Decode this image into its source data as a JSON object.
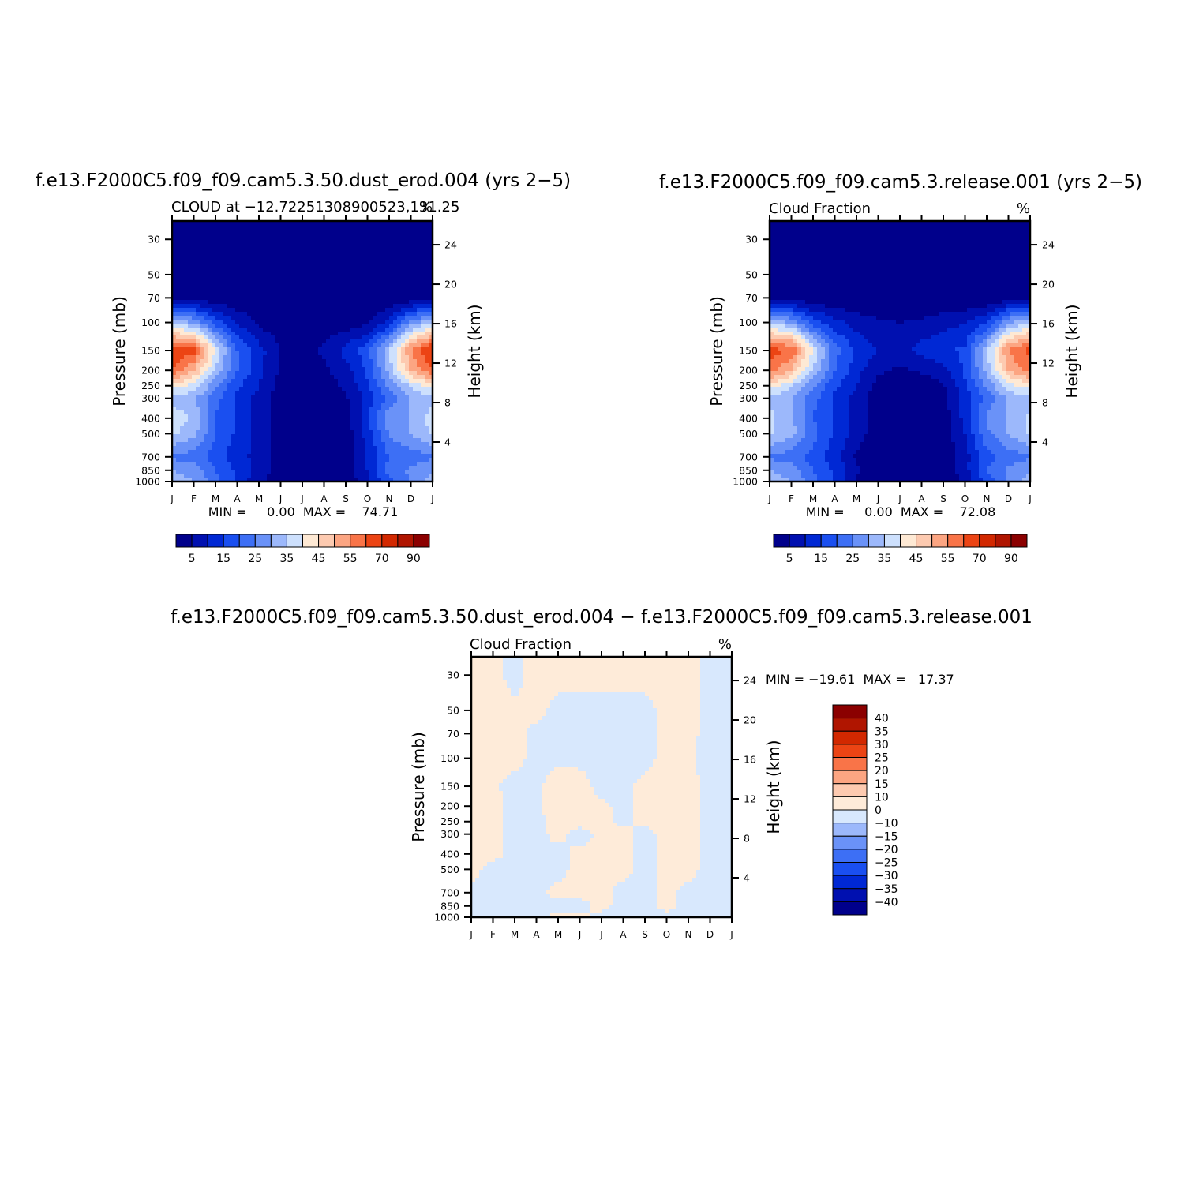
{
  "figure": {
    "panel_a": {
      "case_title": "f.e13.F2000C5.f09_f09.cam5.3.50.dust_erod.004 (yrs 2−5)",
      "left_string": "CLOUD at −12.72251308900523,131.25",
      "right_string": "%",
      "stats": "MIN =     0.00  MAX =    74.71"
    },
    "panel_b": {
      "case_title": "f.e13.F2000C5.f09_f09.cam5.3.release.001 (yrs 2−5)",
      "left_string": "Cloud Fraction",
      "right_string": "%",
      "stats": "MIN =     0.00  MAX =    72.08"
    },
    "panel_c": {
      "case_title": "f.e13.F2000C5.f09_f09.cam5.3.50.dust_erod.004 − f.e13.F2000C5.f09_f09.cam5.3.release.001",
      "left_string": "Cloud Fraction",
      "right_string": "%",
      "stats": "MIN = −19.61  MAX =   17.37"
    }
  },
  "chart_data": [
    {
      "type": "heatmap",
      "subtype": "filled-contour",
      "title": "f.e13.F2000C5.f09_f09.cam5.3.50.dust_erod.004 (yrs 2−5)",
      "subtitle": "CLOUD at −12.72251308900523,131.25",
      "units": "%",
      "xlabel": "",
      "ylabel": "Pressure (mb)",
      "ylabel_right": "Height (km)",
      "x_ticks": [
        "J",
        "F",
        "M",
        "A",
        "M",
        "J",
        "J",
        "A",
        "S",
        "O",
        "N",
        "D",
        "J"
      ],
      "y_ticks": [
        30,
        50,
        70,
        100,
        150,
        200,
        250,
        300,
        400,
        500,
        700,
        850,
        1000
      ],
      "y_scale": "log",
      "ylim": [
        1000,
        23
      ],
      "y_ticks_right": [
        4,
        8,
        12,
        16,
        20,
        24
      ],
      "levels": [
        5,
        10,
        15,
        20,
        25,
        30,
        35,
        40,
        45,
        50,
        55,
        60,
        70,
        80,
        90
      ],
      "colorbar_labels": [
        "5",
        "15",
        "25",
        "35",
        "45",
        "55",
        "70",
        "90"
      ],
      "colors": [
        "#00008b",
        "#0010b0",
        "#0028d4",
        "#1a4ff0",
        "#3d6ff5",
        "#6a92f8",
        "#9cb8fb",
        "#cde0fd",
        "#fee9d4",
        "#fdcab0",
        "#fca582",
        "#f97448",
        "#ec4414",
        "#d22800",
        "#b01500",
        "#8b0000"
      ],
      "field": {
        "months": [
          1,
          2,
          3,
          4,
          5,
          6,
          7,
          8,
          9,
          10,
          11,
          12,
          13
        ],
        "pressure_mb": [
          30,
          50,
          70,
          100,
          150,
          200,
          250,
          300,
          400,
          500,
          700,
          850,
          1000
        ],
        "values": [
          [
            0,
            0,
            0,
            0,
            0,
            0,
            0,
            0,
            0,
            0,
            0,
            0,
            0
          ],
          [
            0,
            0,
            0,
            0,
            0,
            0,
            0,
            0,
            0,
            0,
            0,
            0,
            0
          ],
          [
            2,
            2,
            1,
            0,
            0,
            0,
            0,
            0,
            0,
            0,
            0,
            1,
            2
          ],
          [
            35,
            30,
            18,
            10,
            4,
            1,
            0,
            1,
            2,
            4,
            12,
            28,
            35
          ],
          [
            65,
            62,
            40,
            20,
            12,
            5,
            2,
            6,
            12,
            18,
            35,
            55,
            68
          ],
          [
            60,
            50,
            34,
            20,
            12,
            4,
            1,
            4,
            8,
            16,
            32,
            50,
            60
          ],
          [
            42,
            38,
            26,
            16,
            10,
            3,
            1,
            2,
            6,
            14,
            26,
            36,
            42
          ],
          [
            34,
            30,
            22,
            14,
            8,
            2,
            1,
            1,
            4,
            12,
            22,
            30,
            34
          ],
          [
            38,
            34,
            20,
            14,
            8,
            2,
            0,
            1,
            3,
            14,
            28,
            30,
            38
          ],
          [
            36,
            32,
            20,
            14,
            8,
            2,
            0,
            1,
            2,
            12,
            26,
            30,
            36
          ],
          [
            24,
            22,
            18,
            12,
            8,
            2,
            0,
            0,
            2,
            10,
            20,
            22,
            24
          ],
          [
            30,
            28,
            20,
            14,
            8,
            3,
            1,
            1,
            2,
            10,
            22,
            26,
            30
          ],
          [
            32,
            30,
            22,
            14,
            6,
            2,
            0,
            0,
            2,
            8,
            18,
            26,
            32
          ]
        ]
      }
    },
    {
      "type": "heatmap",
      "subtype": "filled-contour",
      "title": "f.e13.F2000C5.f09_f09.cam5.3.release.001 (yrs 2−5)",
      "subtitle": "Cloud Fraction",
      "units": "%",
      "xlabel": "",
      "ylabel": "Pressure (mb)",
      "ylabel_right": "Height (km)",
      "x_ticks": [
        "J",
        "F",
        "M",
        "A",
        "M",
        "J",
        "J",
        "A",
        "S",
        "O",
        "N",
        "D",
        "J"
      ],
      "y_ticks": [
        30,
        50,
        70,
        100,
        150,
        200,
        250,
        300,
        400,
        500,
        700,
        850,
        1000
      ],
      "y_scale": "log",
      "ylim": [
        1000,
        23
      ],
      "y_ticks_right": [
        4,
        8,
        12,
        16,
        20,
        24
      ],
      "levels": [
        5,
        10,
        15,
        20,
        25,
        30,
        35,
        40,
        45,
        50,
        55,
        60,
        70,
        80,
        90
      ],
      "colorbar_labels": [
        "5",
        "15",
        "25",
        "35",
        "45",
        "55",
        "70",
        "90"
      ],
      "colors": [
        "#00008b",
        "#0010b0",
        "#0028d4",
        "#1a4ff0",
        "#3d6ff5",
        "#6a92f8",
        "#9cb8fb",
        "#cde0fd",
        "#fee9d4",
        "#fdcab0",
        "#fca582",
        "#f97448",
        "#ec4414",
        "#d22800",
        "#b01500",
        "#8b0000"
      ],
      "field": {
        "months": [
          1,
          2,
          3,
          4,
          5,
          6,
          7,
          8,
          9,
          10,
          11,
          12,
          13
        ],
        "pressure_mb": [
          30,
          50,
          70,
          100,
          150,
          200,
          250,
          300,
          400,
          500,
          700,
          850,
          1000
        ],
        "values": [
          [
            0,
            0,
            0,
            0,
            0,
            0,
            0,
            0,
            0,
            0,
            0,
            0,
            0
          ],
          [
            0,
            0,
            0,
            0,
            0,
            0,
            0,
            0,
            0,
            0,
            0,
            0,
            0
          ],
          [
            2,
            2,
            1,
            0,
            0,
            0,
            0,
            0,
            0,
            0,
            0,
            1,
            2
          ],
          [
            35,
            30,
            18,
            12,
            8,
            6,
            5,
            6,
            8,
            10,
            15,
            30,
            35
          ],
          [
            62,
            60,
            40,
            22,
            14,
            10,
            8,
            12,
            14,
            16,
            35,
            55,
            62
          ],
          [
            58,
            50,
            34,
            20,
            12,
            6,
            4,
            6,
            8,
            16,
            32,
            50,
            58
          ],
          [
            42,
            36,
            26,
            16,
            10,
            3,
            1,
            1,
            4,
            14,
            26,
            38,
            42
          ],
          [
            34,
            30,
            22,
            14,
            8,
            2,
            1,
            1,
            3,
            12,
            22,
            30,
            34
          ],
          [
            36,
            32,
            20,
            14,
            8,
            2,
            0,
            0,
            2,
            12,
            26,
            30,
            36
          ],
          [
            36,
            32,
            22,
            14,
            8,
            2,
            0,
            0,
            2,
            10,
            24,
            30,
            36
          ],
          [
            24,
            22,
            18,
            12,
            4,
            1,
            0,
            0,
            1,
            8,
            18,
            22,
            24
          ],
          [
            30,
            28,
            20,
            14,
            6,
            2,
            1,
            0,
            1,
            8,
            20,
            26,
            30
          ],
          [
            32,
            30,
            22,
            14,
            4,
            1,
            0,
            0,
            1,
            6,
            16,
            26,
            32
          ]
        ]
      }
    },
    {
      "type": "heatmap",
      "subtype": "filled-contour",
      "title": "f.e13.F2000C5.f09_f09.cam5.3.50.dust_erod.004 − f.e13.F2000C5.f09_f09.cam5.3.release.001",
      "subtitle": "Cloud Fraction",
      "units": "%",
      "xlabel": "",
      "ylabel": "Pressure (mb)",
      "ylabel_right": "Height (km)",
      "x_ticks": [
        "J",
        "F",
        "M",
        "A",
        "M",
        "J",
        "J",
        "A",
        "S",
        "O",
        "N",
        "D",
        "J"
      ],
      "y_ticks": [
        30,
        50,
        70,
        100,
        150,
        200,
        250,
        300,
        400,
        500,
        700,
        850,
        1000
      ],
      "y_scale": "log",
      "ylim": [
        1000,
        23
      ],
      "y_ticks_right": [
        4,
        8,
        12,
        16,
        20,
        24
      ],
      "levels": [
        -40,
        -35,
        -30,
        -25,
        -20,
        -15,
        -10,
        0,
        10,
        15,
        20,
        25,
        30,
        35,
        40
      ],
      "colorbar_labels": [
        "40",
        "35",
        "30",
        "25",
        "20",
        "15",
        "10",
        "0",
        "−10",
        "−15",
        "−20",
        "−25",
        "−30",
        "−35",
        "−40"
      ],
      "colors": [
        "#00008b",
        "#0010b0",
        "#0028d4",
        "#1a4ff0",
        "#3d6ff5",
        "#6a92f8",
        "#9cb8fb",
        "#d8e8fd",
        "#feebd9",
        "#fdcab0",
        "#fca582",
        "#f97448",
        "#ec4414",
        "#d22800",
        "#b01500",
        "#8b0000"
      ],
      "field": {
        "months": [
          1,
          2,
          3,
          4,
          5,
          6,
          7,
          8,
          9,
          10,
          11,
          12,
          13
        ],
        "pressure_mb": [
          30,
          50,
          70,
          100,
          150,
          200,
          250,
          300,
          400,
          500,
          700,
          850,
          1000
        ],
        "values": [
          [
            2,
            2,
            -2,
            3,
            2,
            2,
            2,
            2,
            2,
            2,
            2,
            -2,
            -2
          ],
          [
            2,
            2,
            1,
            2,
            -2,
            -2,
            -2,
            -2,
            -2,
            2,
            2,
            -2,
            -2
          ],
          [
            2,
            2,
            2,
            -2,
            -2,
            -2,
            -2,
            -2,
            -2,
            2,
            2,
            -2,
            -2
          ],
          [
            2,
            1,
            2,
            -2,
            -2,
            -2,
            -2,
            -2,
            -2,
            2,
            2,
            -5,
            -2
          ],
          [
            1,
            1,
            -2,
            -2,
            4,
            3,
            -3,
            -2,
            2,
            3,
            8,
            -8,
            -2
          ],
          [
            1,
            2,
            -2,
            -2,
            5,
            3,
            2,
            -2,
            2,
            2,
            6,
            -6,
            -2
          ],
          [
            1,
            2,
            -2,
            -2,
            2,
            3,
            2,
            -2,
            2,
            2,
            2,
            -2,
            -2
          ],
          [
            1,
            2,
            -2,
            -2,
            2,
            -3,
            2,
            2,
            -2,
            2,
            2,
            -2,
            -2
          ],
          [
            2,
            2,
            -2,
            -2,
            -2,
            2,
            2,
            2,
            -2,
            2,
            2,
            -2,
            -6
          ],
          [
            2,
            -2,
            -2,
            -4,
            -2,
            2,
            2,
            2,
            -2,
            2,
            2,
            -2,
            -2
          ],
          [
            -2,
            -2,
            -2,
            -2,
            2,
            2,
            2,
            -2,
            -2,
            2,
            -2,
            -2,
            -2
          ],
          [
            -2,
            -2,
            -2,
            -2,
            -2,
            -2,
            2,
            -2,
            -2,
            2,
            -2,
            -2,
            -2
          ],
          [
            -2,
            -2,
            -2,
            -2,
            2,
            2,
            -2,
            -2,
            -2,
            -2,
            -2,
            -2,
            -2
          ]
        ]
      }
    }
  ]
}
